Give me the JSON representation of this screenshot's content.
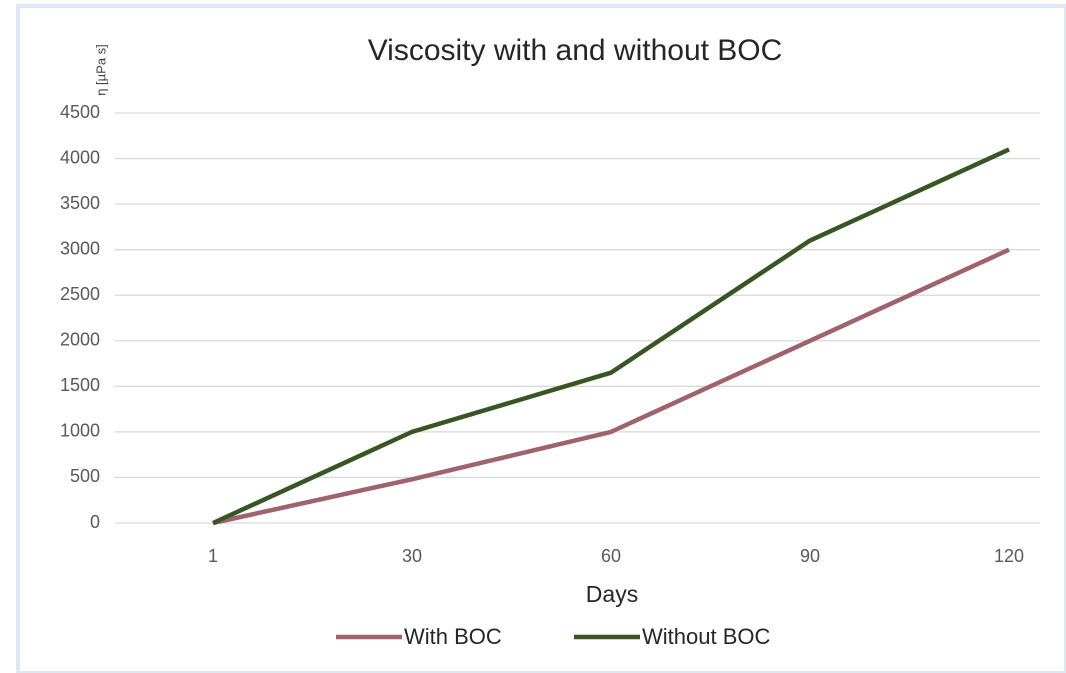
{
  "chart_data": {
    "type": "line",
    "title": "Viscosity with and without BOC",
    "x_label": "Days",
    "y_label": "η [µPa s]",
    "categories": [
      "1",
      "30",
      "60",
      "90",
      "120"
    ],
    "series": [
      {
        "name": "With BOC",
        "color": "#a0636d",
        "values": [
          0,
          480,
          1000,
          2000,
          3000
        ]
      },
      {
        "name": "Without BOC",
        "color": "#375623",
        "values": [
          0,
          1000,
          1650,
          3100,
          4100
        ]
      }
    ],
    "ylim": [
      0,
      4500
    ],
    "yticks": [
      0,
      500,
      1000,
      1500,
      2000,
      2500,
      3000,
      3500,
      4000,
      4500
    ],
    "grid": true,
    "legend": "bottom"
  }
}
